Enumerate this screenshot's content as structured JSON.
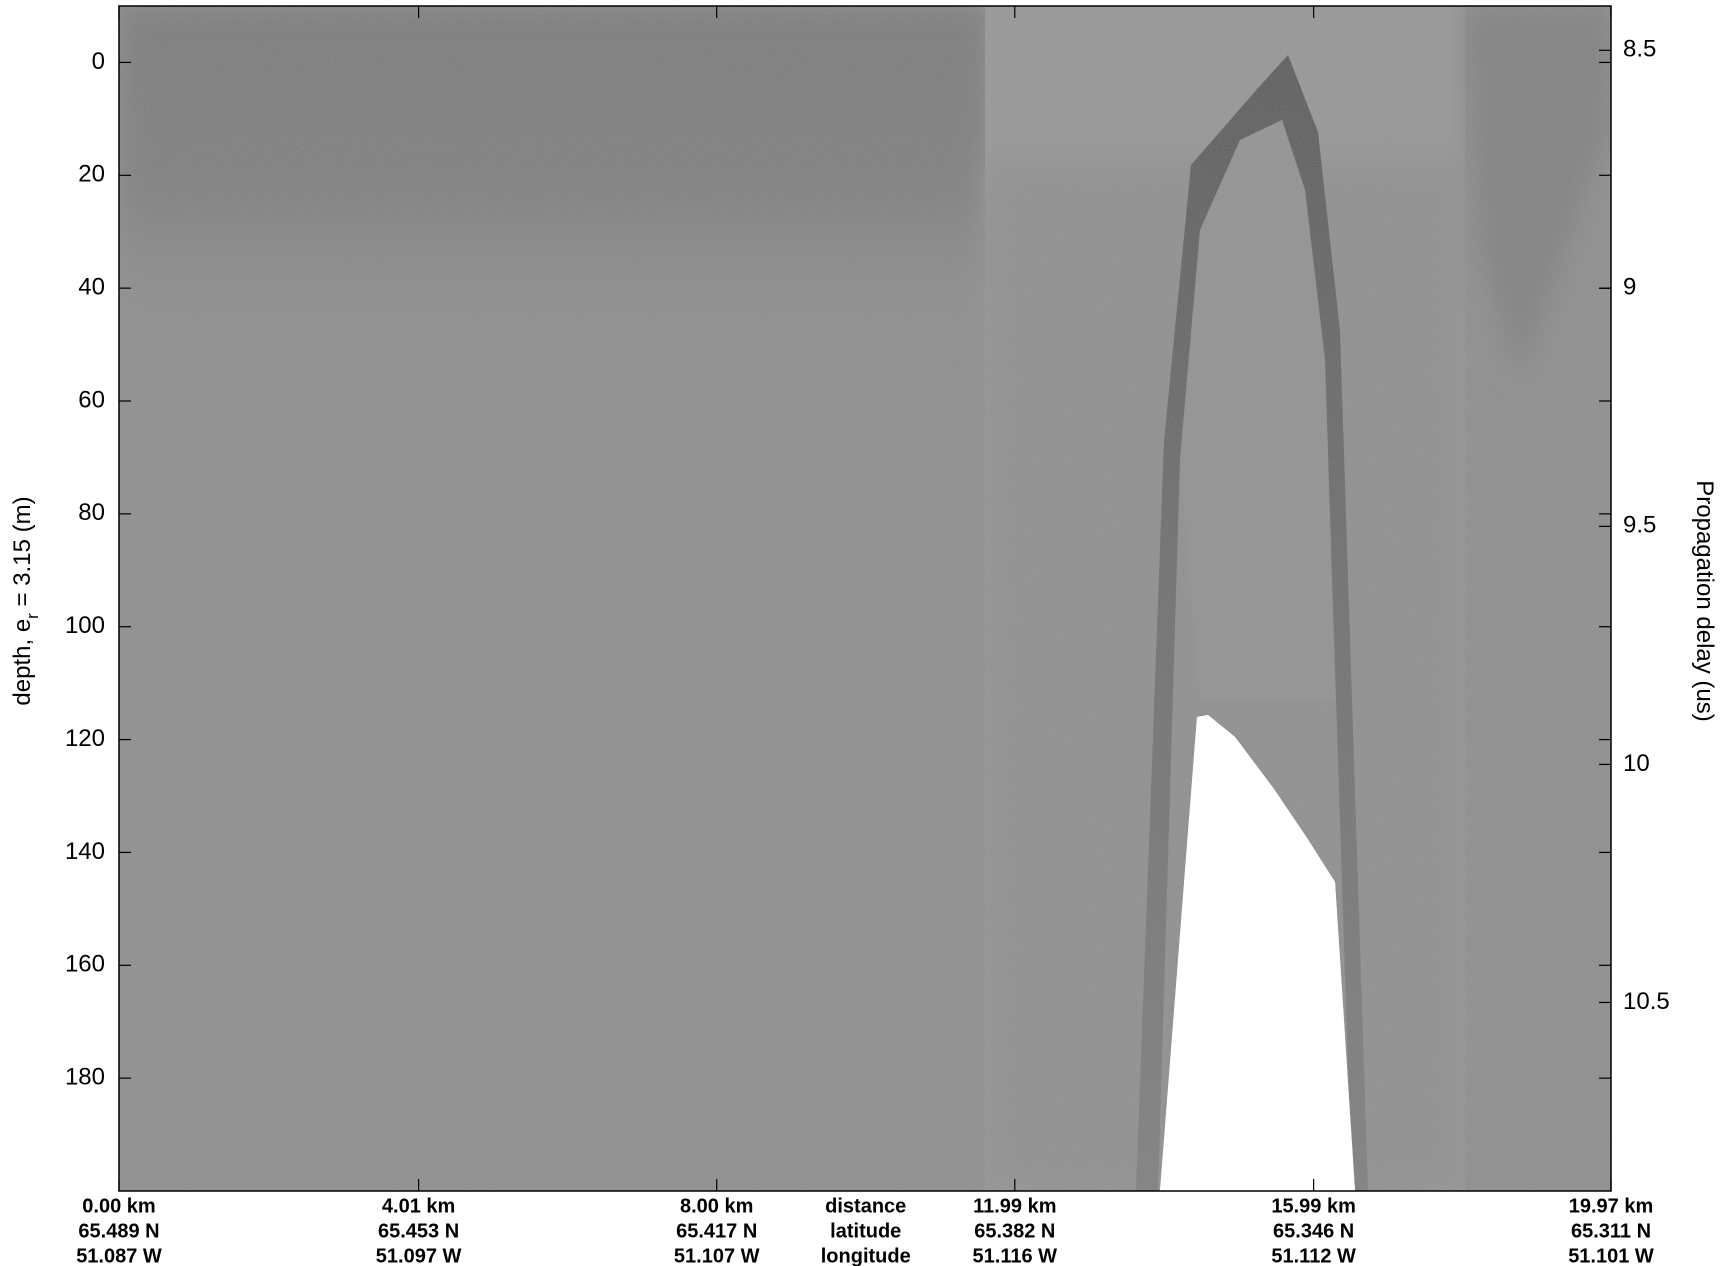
{
  "chart_data": {
    "type": "radargram",
    "y_label": [
      "depth, e",
      "r",
      " = 3.15 (m)"
    ],
    "y2_label": "Propagation delay (us)",
    "ylim": [
      -10,
      200
    ],
    "yticks": [
      0,
      20,
      40,
      60,
      80,
      100,
      120,
      140,
      160,
      180
    ],
    "y2lim": [
      8.407,
      10.896
    ],
    "y2ticks": [
      8.5,
      9,
      9.5,
      10,
      10.5
    ],
    "xlim": [
      0,
      19.97
    ],
    "xticks": [
      {
        "value": 0,
        "label": "0.00 km"
      },
      {
        "value": 4.01,
        "label": "4.01 km"
      },
      {
        "value": 8.0,
        "label": "8.00 km"
      },
      {
        "value": 11.99,
        "label": "11.99 km"
      },
      {
        "value": 15.99,
        "label": "15.99 km"
      },
      {
        "value": 19.97,
        "label": "19.97 km"
      }
    ],
    "latitudes": [
      "65.489 N",
      "65.453 N",
      "65.417 N",
      "65.382 N",
      "65.346 N",
      "65.311 N"
    ],
    "longitudes": [
      "51.087 W",
      "51.097 W",
      "51.107 W",
      "51.116 W",
      "51.112 W",
      "51.101 W"
    ],
    "row_labels": [
      "distance",
      "latitude",
      "longitude"
    ]
  }
}
